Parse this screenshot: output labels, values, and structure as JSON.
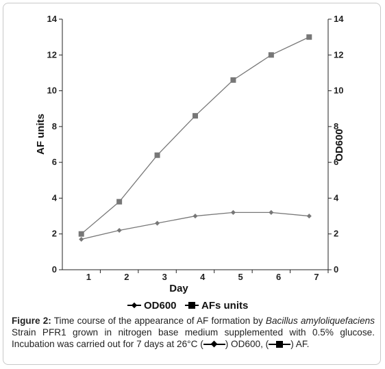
{
  "chart_data": {
    "type": "line",
    "xlabel": "Day",
    "ylabel_left": "AF units",
    "ylabel_right": "OD600",
    "xlim": [
      0,
      7
    ],
    "ylim": [
      0,
      14
    ],
    "xticks": [
      1,
      2,
      3,
      4,
      5,
      6,
      7
    ],
    "yticks": [
      0,
      2,
      4,
      6,
      8,
      10,
      12,
      14
    ],
    "grid": false,
    "legend_position": "bottom-center",
    "series": [
      {
        "name": "OD600",
        "marker": "diamond",
        "color": "#777777",
        "x": [
          0.5,
          1.5,
          2.5,
          3.5,
          4.5,
          5.5,
          6.5
        ],
        "values": [
          1.7,
          2.2,
          2.6,
          3.0,
          3.2,
          3.2,
          3.0
        ]
      },
      {
        "name": "AFs units",
        "marker": "square",
        "color": "#777777",
        "x": [
          0.5,
          1.5,
          2.5,
          3.5,
          4.5,
          5.5,
          6.5
        ],
        "values": [
          2.0,
          3.8,
          6.4,
          8.6,
          10.6,
          12.0,
          13.0
        ]
      }
    ]
  },
  "caption": {
    "label": "Figure 2:",
    "text_1": " Time course of the appearance of AF formation by ",
    "italic": "Bacillus amyloliquefaciens",
    "text_2": " Strain PFR1 grown in nitrogen base medium supplemented with 0.5% glucose. Incubation was carried out for 7 days at 26°C (",
    "text_3": ") OD600, (",
    "text_4": ") AF."
  },
  "colors": {
    "line": "#777777",
    "marker": "#777777",
    "axis": "#222222"
  }
}
